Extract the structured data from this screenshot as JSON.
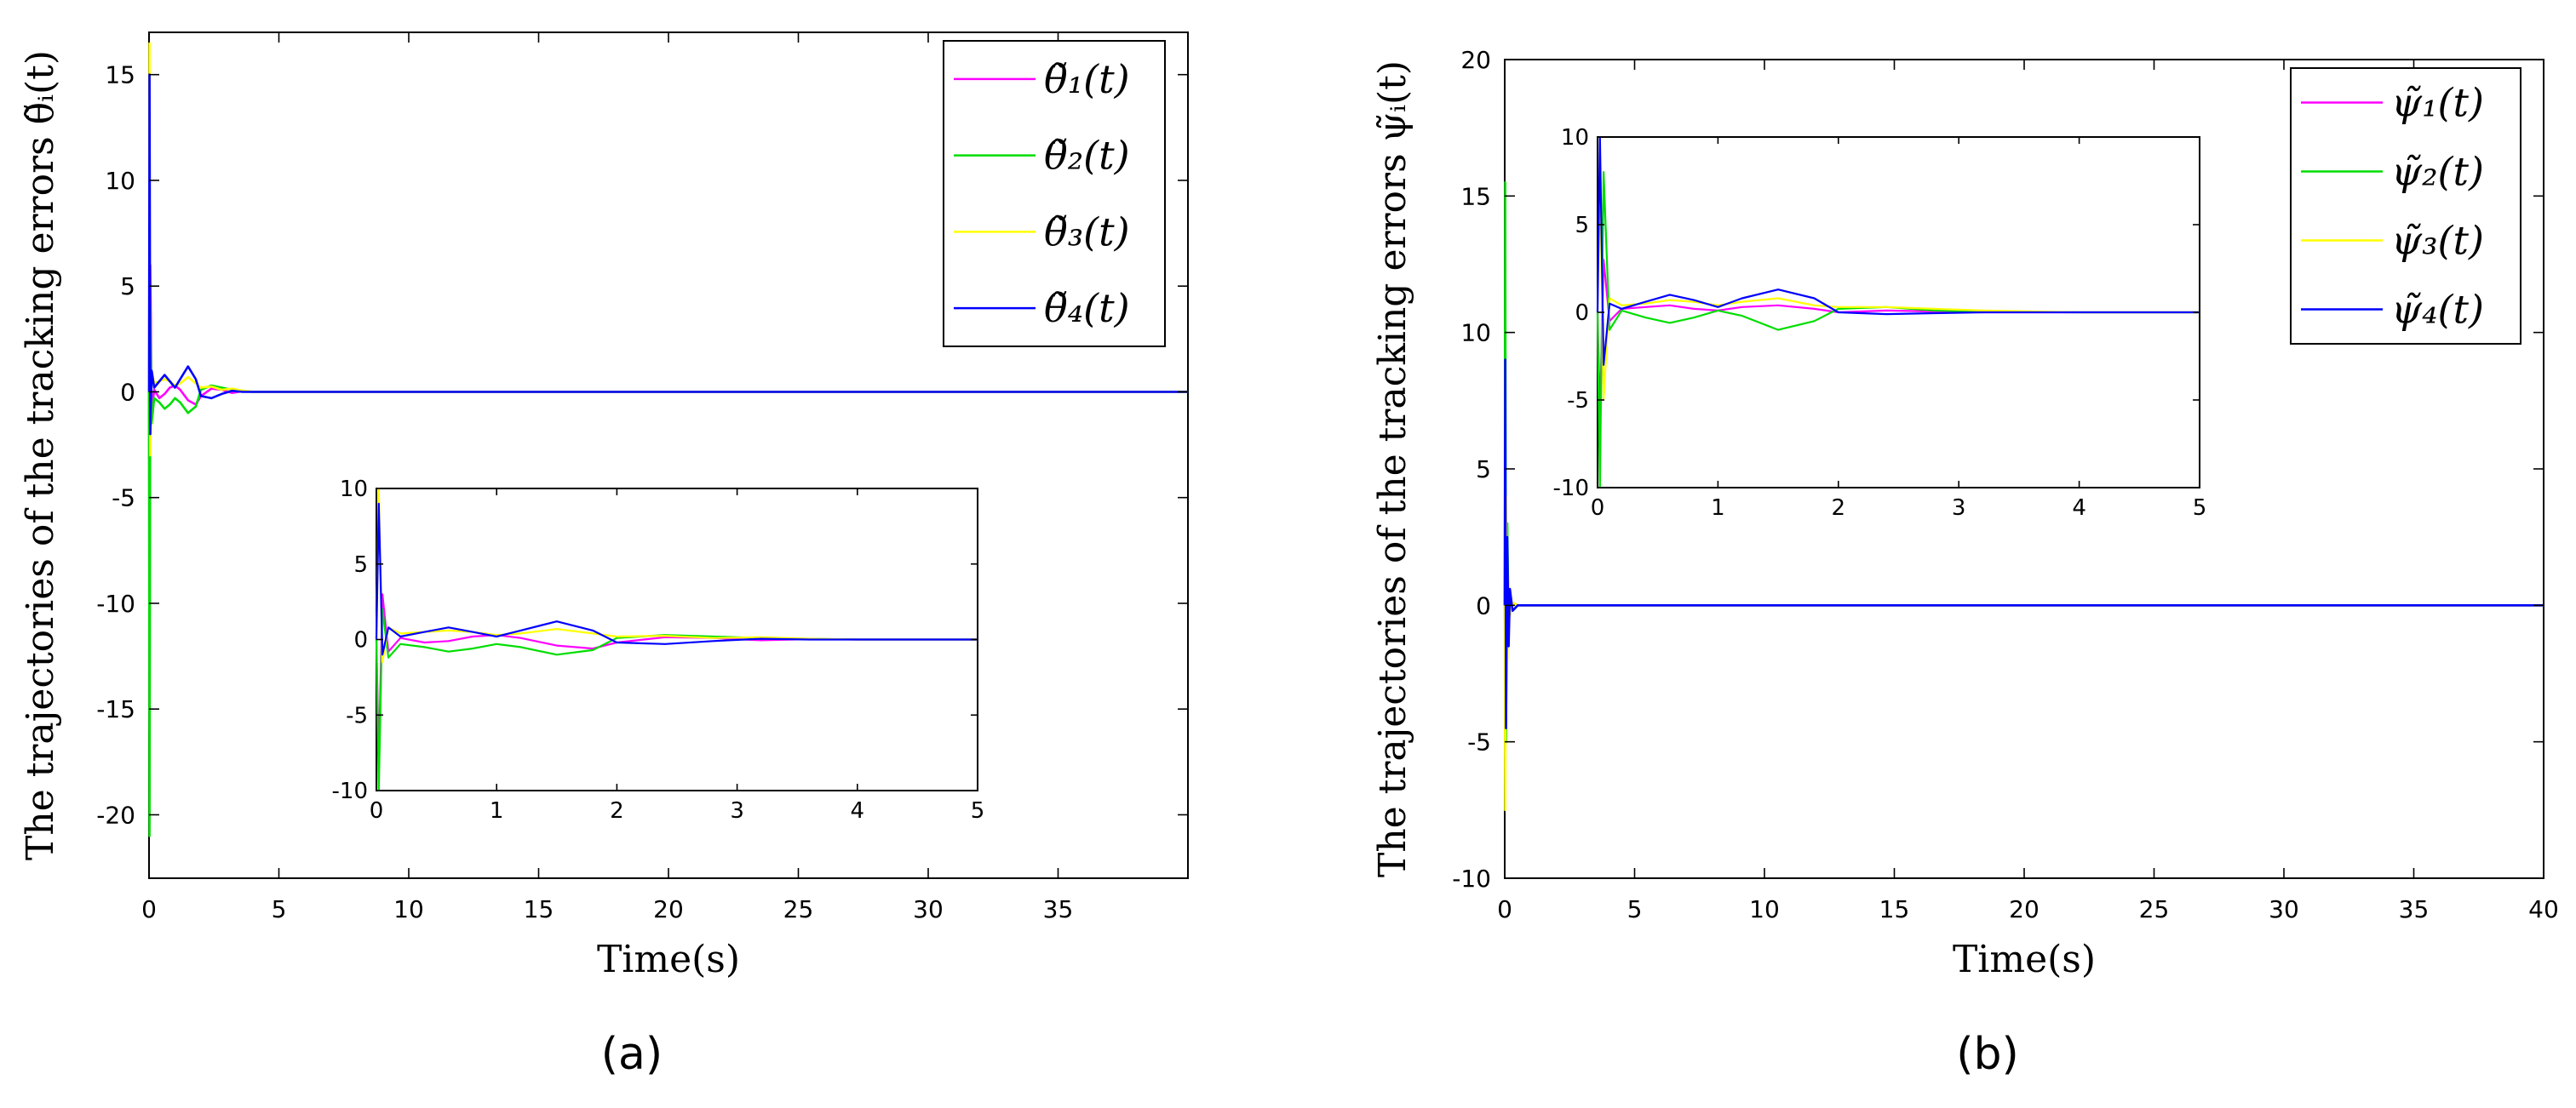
{
  "chart_data": [
    {
      "type": "line",
      "panel_label": "(a)",
      "ylabel": "The trajectories of the tracking errors θ̃ᵢ(t)",
      "xlabel": "Time(s)",
      "xlim": [
        0,
        40
      ],
      "ylim": [
        -23,
        17
      ],
      "xticks": [
        0,
        5,
        10,
        15,
        20,
        25,
        30,
        35
      ],
      "yticks": [
        -20,
        -15,
        -10,
        -5,
        0,
        5,
        10,
        15
      ],
      "legend_position": "top-right",
      "grid": false,
      "series": [
        {
          "name": "θ̃₁(t)",
          "color": "#ff00ff",
          "x": [
            0,
            0.02,
            0.05,
            0.1,
            0.2,
            0.4,
            0.6,
            0.8,
            1.0,
            1.2,
            1.5,
            1.8,
            2.0,
            2.4,
            2.8,
            3.2,
            3.6,
            4.0,
            5,
            40
          ],
          "y": [
            0,
            -16,
            6,
            -1,
            0.1,
            -0.3,
            -0.1,
            0.2,
            0.3,
            0.1,
            -0.4,
            -0.6,
            -0.2,
            0.15,
            0.1,
            -0.05,
            0.03,
            0,
            0,
            0
          ]
        },
        {
          "name": "θ̃₂(t)",
          "color": "#00dd00",
          "x": [
            0,
            0.02,
            0.05,
            0.1,
            0.2,
            0.4,
            0.6,
            0.8,
            1.0,
            1.2,
            1.5,
            1.8,
            2.0,
            2.4,
            2.8,
            3.2,
            3.6,
            4.0,
            5,
            40
          ],
          "y": [
            0,
            -21,
            4,
            -1.5,
            -0.3,
            -0.5,
            -0.8,
            -0.6,
            -0.3,
            -0.5,
            -1.0,
            -0.7,
            0.1,
            0.3,
            0.2,
            0.1,
            0.05,
            0,
            0,
            0
          ]
        },
        {
          "name": "θ̃₃(t)",
          "color": "#ffff00",
          "x": [
            0,
            0.02,
            0.05,
            0.1,
            0.2,
            0.4,
            0.6,
            0.8,
            1.0,
            1.2,
            1.5,
            1.8,
            2.0,
            2.4,
            2.8,
            3.2,
            3.6,
            4.0,
            5,
            40
          ],
          "y": [
            0,
            16.5,
            -3,
            1,
            0.4,
            0.5,
            0.6,
            0.5,
            0.3,
            0.4,
            0.7,
            0.4,
            0.2,
            0.25,
            0.1,
            0.15,
            0.05,
            0,
            0,
            0
          ]
        },
        {
          "name": "θ̃₄(t)",
          "color": "#0000ff",
          "x": [
            0,
            0.02,
            0.05,
            0.1,
            0.2,
            0.4,
            0.6,
            0.8,
            1.0,
            1.2,
            1.5,
            1.8,
            2.0,
            2.4,
            2.8,
            3.2,
            3.6,
            4.0,
            5,
            40
          ],
          "y": [
            0,
            15,
            -2,
            1,
            0.2,
            0.5,
            0.8,
            0.5,
            0.2,
            0.6,
            1.2,
            0.6,
            -0.2,
            -0.3,
            -0.1,
            0.05,
            0,
            0,
            0,
            0
          ]
        }
      ],
      "inset": {
        "xlim": [
          0,
          5
        ],
        "ylim": [
          -10,
          10
        ],
        "xticks": [
          0,
          1,
          2,
          3,
          4,
          5
        ],
        "yticks": [
          -10,
          -5,
          0,
          5,
          10
        ],
        "series": [
          {
            "color": "#ff00ff",
            "x": [
              0,
              0.02,
              0.05,
              0.1,
              0.2,
              0.4,
              0.6,
              0.8,
              1.0,
              1.2,
              1.5,
              1.8,
              2.0,
              2.4,
              2.8,
              3.2,
              3.6,
              4.0,
              4.5,
              5
            ],
            "y": [
              0,
              -8,
              3,
              -0.8,
              0.1,
              -0.2,
              -0.1,
              0.2,
              0.3,
              0.1,
              -0.4,
              -0.6,
              -0.2,
              0.15,
              0.1,
              -0.05,
              0.03,
              0,
              0,
              0
            ]
          },
          {
            "color": "#00dd00",
            "x": [
              0,
              0.02,
              0.05,
              0.1,
              0.2,
              0.4,
              0.6,
              0.8,
              1.0,
              1.2,
              1.5,
              1.8,
              2.0,
              2.4,
              2.8,
              3.2,
              3.6,
              4.0,
              4.5,
              5
            ],
            "y": [
              0,
              -10,
              2,
              -1.2,
              -0.3,
              -0.5,
              -0.8,
              -0.6,
              -0.3,
              -0.5,
              -1.0,
              -0.7,
              0.1,
              0.3,
              0.2,
              0.1,
              0.05,
              0,
              0,
              0
            ]
          },
          {
            "color": "#ffff00",
            "x": [
              0,
              0.02,
              0.05,
              0.1,
              0.2,
              0.4,
              0.6,
              0.8,
              1.0,
              1.2,
              1.5,
              1.8,
              2.0,
              2.4,
              2.8,
              3.2,
              3.6,
              4.0,
              4.5,
              5
            ],
            "y": [
              0,
              10,
              -1.5,
              0.8,
              0.4,
              0.5,
              0.6,
              0.5,
              0.3,
              0.4,
              0.7,
              0.4,
              0.2,
              0.25,
              0.1,
              0.15,
              0.05,
              0,
              0,
              0
            ]
          },
          {
            "color": "#0000ff",
            "x": [
              0,
              0.02,
              0.05,
              0.1,
              0.2,
              0.4,
              0.6,
              0.8,
              1.0,
              1.2,
              1.5,
              1.8,
              2.0,
              2.4,
              2.8,
              3.2,
              3.6,
              4.0,
              4.5,
              5
            ],
            "y": [
              0,
              9,
              -1,
              0.8,
              0.2,
              0.5,
              0.8,
              0.5,
              0.2,
              0.6,
              1.2,
              0.6,
              -0.2,
              -0.3,
              -0.1,
              0.05,
              0,
              0,
              0,
              0
            ]
          }
        ]
      }
    },
    {
      "type": "line",
      "panel_label": "(b)",
      "ylabel": "The trajectories of the tracking errors ψ̃ᵢ(t)",
      "xlabel": "Time(s)",
      "xlim": [
        0,
        40
      ],
      "ylim": [
        -10,
        20
      ],
      "xticks": [
        0,
        5,
        10,
        15,
        20,
        25,
        30,
        35,
        40
      ],
      "yticks": [
        -10,
        -5,
        0,
        5,
        10,
        15,
        20
      ],
      "legend_position": "top-right",
      "grid": false,
      "series": [
        {
          "name": "ψ̃₁(t)",
          "color": "#ff00ff",
          "x": [
            0,
            0.02,
            0.05,
            0.1,
            0.15,
            0.2,
            0.3,
            0.5,
            1,
            2,
            40
          ],
          "y": [
            0,
            -2,
            3,
            -1,
            0.5,
            -0.2,
            0.1,
            0,
            0,
            0,
            0
          ]
        },
        {
          "name": "ψ̃₂(t)",
          "color": "#00dd00",
          "x": [
            0,
            0.02,
            0.05,
            0.1,
            0.15,
            0.2,
            0.3,
            0.5,
            1,
            2,
            40
          ],
          "y": [
            0,
            15.5,
            -5,
            3,
            -1,
            0.5,
            -0.2,
            0,
            0,
            0,
            0
          ]
        },
        {
          "name": "ψ̃₃(t)",
          "color": "#ffff00",
          "x": [
            0,
            0.02,
            0.05,
            0.1,
            0.15,
            0.2,
            0.3,
            0.5,
            1,
            2,
            40
          ],
          "y": [
            0,
            -7.5,
            4,
            -2,
            1,
            -0.4,
            0.1,
            0,
            0,
            0,
            0
          ]
        },
        {
          "name": "ψ̃₄(t)",
          "color": "#0000ff",
          "x": [
            0,
            0.02,
            0.05,
            0.1,
            0.15,
            0.2,
            0.3,
            0.5,
            1,
            2,
            40
          ],
          "y": [
            0,
            9,
            -4.5,
            2.5,
            -1.5,
            0.6,
            -0.2,
            0,
            0,
            0,
            0
          ]
        }
      ],
      "inset": {
        "xlim": [
          0,
          5
        ],
        "ylim": [
          -10,
          10
        ],
        "xticks": [
          0,
          1,
          2,
          3,
          4,
          5
        ],
        "yticks": [
          -10,
          -5,
          0,
          5,
          10
        ],
        "series": [
          {
            "color": "#ff00ff",
            "x": [
              0,
              0.02,
              0.05,
              0.1,
              0.2,
              0.4,
              0.6,
              0.8,
              1.0,
              1.2,
              1.5,
              1.8,
              2.0,
              2.4,
              2.8,
              3.2,
              3.6,
              4.0,
              4.5,
              5
            ],
            "y": [
              0,
              -6,
              3,
              -0.5,
              0.2,
              0.3,
              0.4,
              0.2,
              0.1,
              0.3,
              0.4,
              0.2,
              0,
              0.1,
              0.05,
              0,
              0,
              0,
              0,
              0
            ]
          },
          {
            "color": "#00dd00",
            "x": [
              0,
              0.02,
              0.05,
              0.1,
              0.2,
              0.4,
              0.6,
              0.8,
              1.0,
              1.2,
              1.5,
              1.8,
              2.0,
              2.4,
              2.8,
              3.2,
              3.6,
              4.0,
              4.5,
              5
            ],
            "y": [
              0,
              -10,
              8,
              -1,
              0.1,
              -0.3,
              -0.6,
              -0.3,
              0.1,
              -0.2,
              -1.0,
              -0.5,
              0.2,
              0.3,
              0.1,
              0.05,
              0.02,
              0,
              0,
              0
            ]
          },
          {
            "color": "#ffff00",
            "x": [
              0,
              0.02,
              0.05,
              0.1,
              0.2,
              0.4,
              0.6,
              0.8,
              1.0,
              1.2,
              1.5,
              1.8,
              2.0,
              2.4,
              2.8,
              3.2,
              3.6,
              4.0,
              4.5,
              5
            ],
            "y": [
              0,
              8,
              -5,
              0.8,
              0.4,
              0.5,
              0.7,
              0.6,
              0.4,
              0.6,
              0.8,
              0.4,
              0.3,
              0.3,
              0.2,
              0.1,
              0.05,
              0,
              0,
              0
            ]
          },
          {
            "color": "#0000ff",
            "x": [
              0,
              0.02,
              0.05,
              0.1,
              0.2,
              0.4,
              0.6,
              0.8,
              1.0,
              1.2,
              1.5,
              1.8,
              2.0,
              2.4,
              2.8,
              3.2,
              3.6,
              4.0,
              4.5,
              5
            ],
            "y": [
              0,
              10,
              -3,
              0.5,
              0.2,
              0.6,
              1.0,
              0.7,
              0.3,
              0.8,
              1.3,
              0.8,
              0,
              -0.1,
              -0.05,
              0,
              0,
              0,
              0,
              0
            ]
          }
        ]
      }
    }
  ]
}
